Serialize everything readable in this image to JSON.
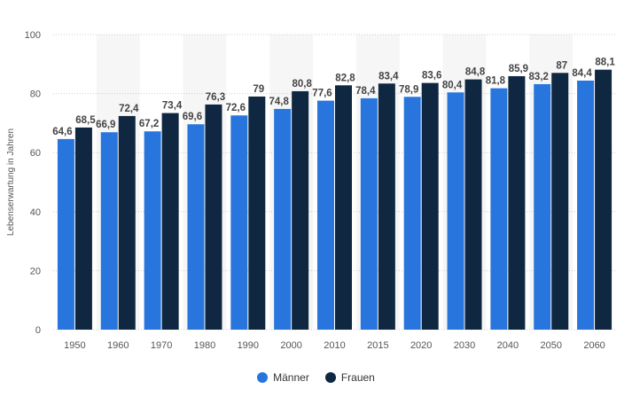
{
  "chart_data": {
    "type": "bar",
    "title": "",
    "xlabel": "",
    "ylabel": "Lebenserwartung in Jahren",
    "ylim": [
      0,
      100
    ],
    "yticks": [
      0,
      20,
      40,
      60,
      80,
      100
    ],
    "grid": true,
    "legend_position": "bottom",
    "categories": [
      "1950",
      "1960",
      "1970",
      "1980",
      "1990",
      "2000",
      "2010",
      "2015",
      "2020",
      "2030",
      "2040",
      "2050",
      "2060"
    ],
    "series": [
      {
        "name": "Männer",
        "color": "#2876dd",
        "values": [
          64.6,
          66.9,
          67.2,
          69.6,
          72.6,
          74.8,
          77.6,
          78.4,
          78.9,
          80.4,
          81.8,
          83.2,
          84.4
        ],
        "labels": [
          "64,6",
          "66,9",
          "67,2",
          "69,6",
          "72,6",
          "74,8",
          "77,6",
          "78,4",
          "78,9",
          "80,4",
          "81,8",
          "83,2",
          "84,4"
        ]
      },
      {
        "name": "Frauen",
        "color": "#0f2740",
        "values": [
          68.5,
          72.4,
          73.4,
          76.3,
          79,
          80.8,
          82.8,
          83.4,
          83.6,
          84.8,
          85.9,
          87,
          88.1
        ],
        "labels": [
          "68,5",
          "72,4",
          "73,4",
          "76,3",
          "79",
          "80,8",
          "82,8",
          "83,4",
          "83,6",
          "84,8",
          "85,9",
          "87",
          "88,1"
        ]
      }
    ]
  }
}
